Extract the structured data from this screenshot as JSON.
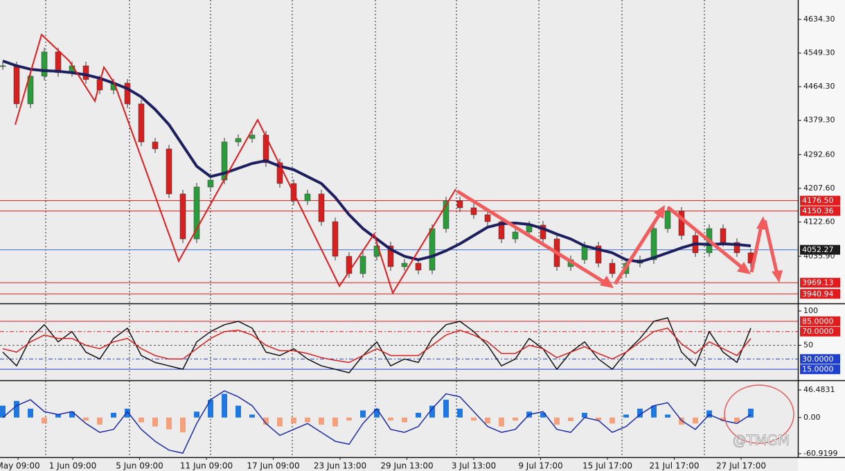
{
  "chart_data": [
    {
      "type": "candlestick",
      "panel": "price",
      "ylim": [
        3918.7,
        4683.3
      ],
      "yticks": [
        {
          "value": 4634.3,
          "label": "4634.30"
        },
        {
          "value": 4549.3,
          "label": "4549.30"
        },
        {
          "value": 4464.3,
          "label": "4464.30"
        },
        {
          "value": 4379.3,
          "label": "4379.30"
        },
        {
          "value": 4292.6,
          "label": "4292.60"
        },
        {
          "value": 4207.6,
          "label": "4207.60"
        },
        {
          "value": 4122.6,
          "label": "4122.60"
        },
        {
          "value": 4035.9,
          "label": "4035.90"
        }
      ],
      "levels": [
        {
          "value": 4176.5,
          "label": "4176.50",
          "color": "#e41a1c"
        },
        {
          "value": 4150.36,
          "label": "4150.36",
          "color": "#e41a1c"
        },
        {
          "value": 4052.27,
          "label": "4052.27",
          "color": "#3a6fd8",
          "label_color": "#1c1c1c"
        },
        {
          "value": 3969.13,
          "label": "3969.13",
          "color": "#e41a1c"
        },
        {
          "value": 3940.94,
          "label": "3940.94",
          "color": "#e41a1c"
        }
      ],
      "series": [
        {
          "name": "Close",
          "up_color": "#2a9d3a",
          "down_color": "#d62020",
          "values": [
            4517.1,
            4420.9,
            4490.9,
            4552.2,
            4499.7,
            4517.1,
            4482.2,
            4455.9,
            4473.4,
            4420.9,
            4324.7,
            4307.2,
            4193.4,
            4079.7,
            4210.9,
            4228.4,
            4324.7,
            4333.4,
            4342.2,
            4272.2,
            4219.7,
            4175.9,
            4193.4,
            4123.4,
            4035.9,
            3992.2,
            4035.9,
            4062.2,
            4009.7,
            4018.4,
            4000.9,
            4105.9,
            4175.9,
            4158.4,
            4140.9,
            4123.4,
            4079.7,
            4097.2,
            4114.7,
            4079.7,
            4009.7,
            4027.2,
            4062.2,
            4018.4,
            3992.2,
            4018.4,
            4027.2,
            4105.9,
            4149.7,
            4088.4,
            4044.7,
            4105.9,
            4070.9,
            4044.7,
            4018.4
          ]
        },
        {
          "name": "MA",
          "color": "#1d1f5e",
          "values": [
            4529.4,
            4517.1,
            4508.4,
            4504.9,
            4503.2,
            4499.7,
            4494.4,
            4485.7,
            4473.4,
            4459.4,
            4438.4,
            4406.9,
            4368.4,
            4315.9,
            4263.4,
            4237.2,
            4245.9,
            4258.2,
            4270.4,
            4277.4,
            4263.4,
            4254.7,
            4237.2,
            4219.7,
            4184.7,
            4140.9,
            4105.9,
            4079.7,
            4053.4,
            4035.9,
            4027.2,
            4035.9,
            4049.9,
            4067.4,
            4088.4,
            4109.4,
            4118.2,
            4119.9,
            4116.4,
            4105.9,
            4091.9,
            4079.7,
            4062.2,
            4053.4,
            4044.7,
            4027.2,
            4021.9,
            4032.4,
            4044.7,
            4057.2,
            4067.4,
            4065.7,
            4067.4,
            4065.7,
            4062.2
          ]
        }
      ]
    },
    {
      "type": "line",
      "panel": "oscillator",
      "ylim": [
        0,
        100
      ],
      "yticks": [
        100,
        50
      ],
      "levels": [
        {
          "value": 85,
          "label": "85.0000",
          "color": "#e41a1c"
        },
        {
          "value": 70,
          "label": "70.0000",
          "color": "#e41a1c"
        },
        {
          "value": 30,
          "label": "30.0000",
          "color": "#1f3fd0"
        },
        {
          "value": 15,
          "label": "15.0000",
          "color": "#1f3fd0"
        }
      ],
      "series": [
        {
          "name": "Main",
          "color": "#111111",
          "values": [
            40,
            20,
            60,
            80,
            55,
            70,
            40,
            30,
            60,
            75,
            35,
            25,
            20,
            15,
            55,
            70,
            80,
            85,
            75,
            40,
            35,
            45,
            30,
            20,
            15,
            10,
            35,
            55,
            20,
            30,
            25,
            60,
            80,
            85,
            70,
            50,
            20,
            30,
            60,
            45,
            15,
            40,
            55,
            30,
            15,
            40,
            60,
            85,
            90,
            40,
            20,
            70,
            40,
            25,
            75
          ]
        },
        {
          "name": "Signal",
          "color": "#d62020",
          "values": [
            45,
            40,
            55,
            65,
            60,
            60,
            50,
            45,
            55,
            60,
            45,
            35,
            30,
            30,
            45,
            60,
            70,
            72,
            65,
            50,
            42,
            42,
            38,
            32,
            28,
            25,
            35,
            45,
            35,
            35,
            35,
            50,
            65,
            72,
            65,
            55,
            38,
            38,
            50,
            45,
            32,
            40,
            48,
            38,
            30,
            40,
            55,
            70,
            75,
            52,
            38,
            55,
            45,
            35,
            60
          ]
        }
      ]
    },
    {
      "type": "bar",
      "panel": "macd",
      "ylim": [
        -60.9199,
        46.4831
      ],
      "yticks": [
        {
          "value": 46.4831,
          "label": "46.4831"
        },
        {
          "value": 0,
          "label": "0.00"
        },
        {
          "value": -60.9199,
          "label": "-60.9199"
        }
      ],
      "series": [
        {
          "name": "Histogram",
          "color": "#1e78e0",
          "negative_color": "#f4a07c",
          "values": [
            20,
            28,
            15,
            -10,
            5,
            10,
            -5,
            -12,
            8,
            15,
            -8,
            -15,
            -20,
            -25,
            10,
            30,
            40,
            20,
            5,
            -12,
            -15,
            -10,
            -8,
            -12,
            -15,
            -5,
            12,
            15,
            -5,
            -8,
            8,
            20,
            30,
            15,
            -5,
            -10,
            -15,
            -5,
            10,
            8,
            -12,
            -6,
            8,
            -5,
            -10,
            5,
            15,
            20,
            5,
            -12,
            -10,
            12,
            -6,
            -8,
            15
          ]
        },
        {
          "name": "MACD",
          "color": "#1c2aa8",
          "values": [
            0,
            20,
            30,
            10,
            5,
            10,
            -10,
            -25,
            -20,
            10,
            -20,
            -40,
            -55,
            -60,
            -10,
            30,
            45,
            35,
            20,
            -10,
            -30,
            -20,
            -10,
            -25,
            -40,
            -45,
            -10,
            15,
            -20,
            -25,
            -15,
            15,
            40,
            35,
            10,
            -15,
            -25,
            -20,
            5,
            10,
            -20,
            -25,
            0,
            -5,
            -25,
            -15,
            5,
            20,
            25,
            -5,
            -20,
            5,
            -5,
            -10,
            5
          ]
        }
      ],
      "xtick_labels": [
        "May 09:00",
        "1 Jun 09:00",
        "5 Jun 09:00",
        "11 Jun 09:00",
        "17 Jun 09:00",
        "23 Jun 13:00",
        "29 Jun 13:00",
        "3 Jul 13:00",
        "9 Jul 17:00",
        "15 Jul 17:00",
        "21 Jul 17:00",
        "27 Jul 17:00"
      ]
    }
  ],
  "watermark": "@TMGM"
}
